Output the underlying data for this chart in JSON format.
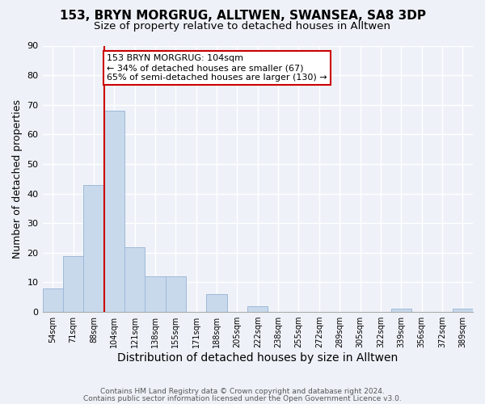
{
  "title": "153, BRYN MORGRUG, ALLTWEN, SWANSEA, SA8 3DP",
  "subtitle": "Size of property relative to detached houses in Alltwen",
  "xlabel": "Distribution of detached houses by size in Alltwen",
  "ylabel": "Number of detached properties",
  "footer_line1": "Contains HM Land Registry data © Crown copyright and database right 2024.",
  "footer_line2": "Contains public sector information licensed under the Open Government Licence v3.0.",
  "bins": [
    "54sqm",
    "71sqm",
    "88sqm",
    "104sqm",
    "121sqm",
    "138sqm",
    "155sqm",
    "171sqm",
    "188sqm",
    "205sqm",
    "222sqm",
    "238sqm",
    "255sqm",
    "272sqm",
    "289sqm",
    "305sqm",
    "322sqm",
    "339sqm",
    "356sqm",
    "372sqm",
    "389sqm"
  ],
  "values": [
    8,
    19,
    43,
    68,
    22,
    12,
    12,
    0,
    6,
    0,
    2,
    0,
    0,
    0,
    0,
    0,
    0,
    1,
    0,
    0,
    1
  ],
  "bar_color": "#c8d9ec",
  "bar_edge_color": "#a0b8d8",
  "vline_x": 2.5,
  "vline_color": "#cc0000",
  "annotation_text": "153 BRYN MORGRUG: 104sqm\n← 34% of detached houses are smaller (67)\n65% of semi-detached houses are larger (130) →",
  "annotation_box_color": "white",
  "annotation_box_edge_color": "#cc0000",
  "ylim": [
    0,
    90
  ],
  "yticks": [
    0,
    10,
    20,
    30,
    40,
    50,
    60,
    70,
    80,
    90
  ],
  "background_color": "#eef2f8",
  "plot_bg_color": "#eef2f8",
  "title_fontsize": 11,
  "subtitle_fontsize": 9.5,
  "xlabel_fontsize": 10,
  "ylabel_fontsize": 9,
  "grid_color": "#ffffff",
  "footer_color": "#555555"
}
